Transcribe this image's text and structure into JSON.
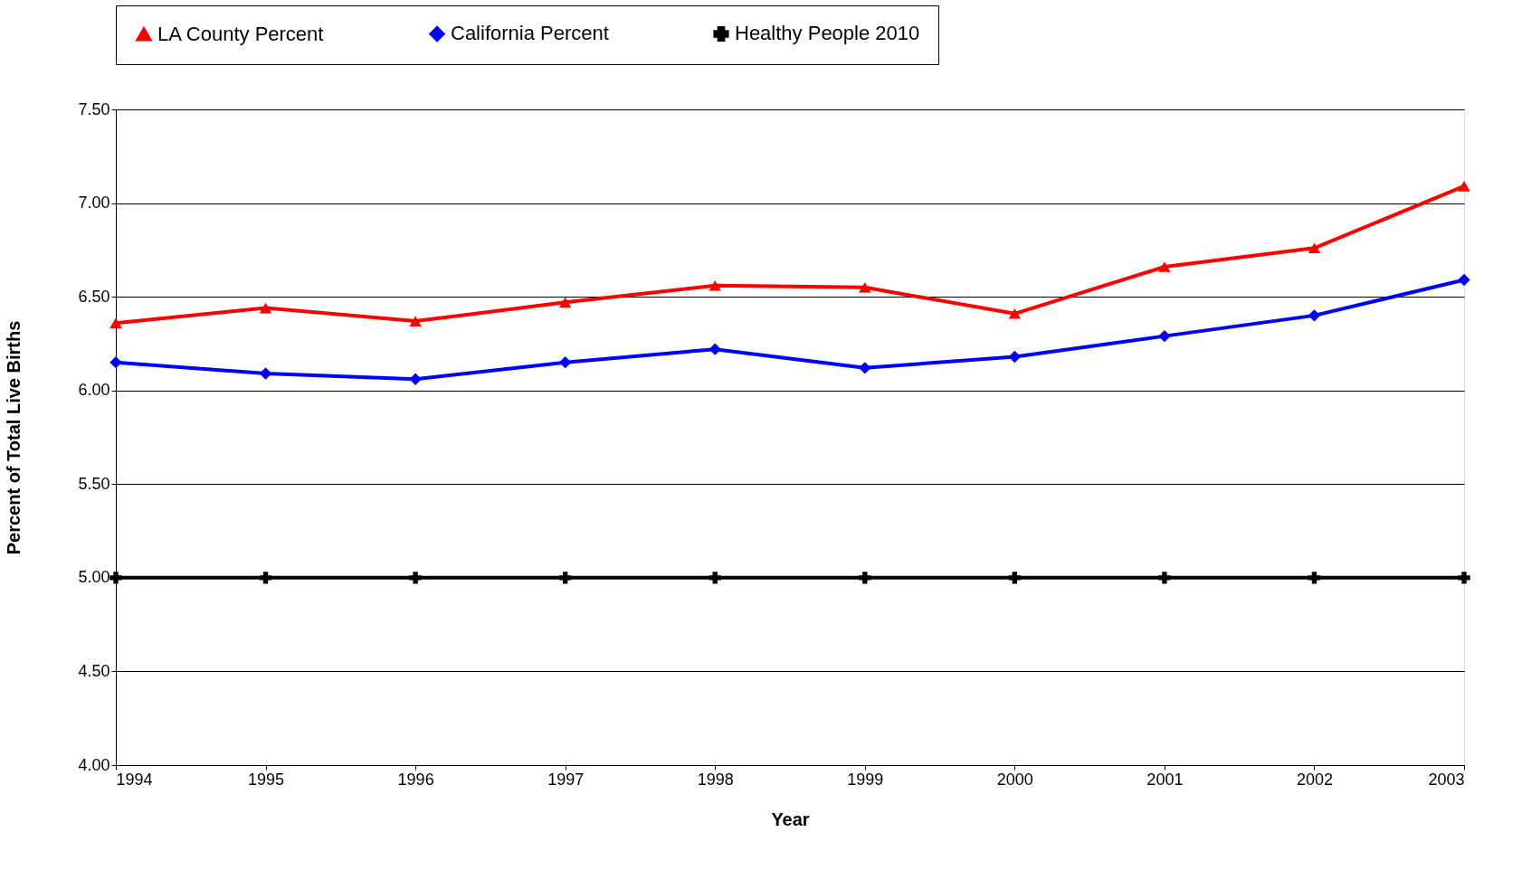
{
  "chart_data": {
    "type": "line",
    "xlabel": "Year",
    "ylabel": "Percent of Total Live Births",
    "x": [
      1994,
      1995,
      1996,
      1997,
      1998,
      1999,
      2000,
      2001,
      2002,
      2003
    ],
    "xlim": [
      1994,
      2003
    ],
    "xticks": [
      1994,
      1995,
      1996,
      1997,
      1998,
      1999,
      2000,
      2001,
      2002,
      2003
    ],
    "ylim": [
      4.0,
      7.5
    ],
    "yticks": [
      {
        "value": 4.0,
        "label": "4.00"
      },
      {
        "value": 4.5,
        "label": "4.50"
      },
      {
        "value": 5.0,
        "label": "5.00"
      },
      {
        "value": 5.5,
        "label": "5.50"
      },
      {
        "value": 6.0,
        "label": "6.00"
      },
      {
        "value": 6.5,
        "label": "6.50"
      },
      {
        "value": 7.0,
        "label": "7.00"
      },
      {
        "value": 7.5,
        "label": "7.50"
      }
    ],
    "grid": "y",
    "legend": "top",
    "line_style": "solid",
    "series": [
      {
        "name": "LA County Percent",
        "color": "#ff0000",
        "marker": "triangle",
        "values": [
          6.36,
          6.44,
          6.37,
          6.47,
          6.56,
          6.55,
          6.41,
          6.66,
          6.76,
          7.09
        ]
      },
      {
        "name": "California Percent",
        "color": "#0000ff",
        "marker": "diamond",
        "values": [
          6.15,
          6.09,
          6.06,
          6.15,
          6.22,
          6.12,
          6.18,
          6.29,
          6.4,
          6.59
        ]
      },
      {
        "name": "Healthy People 2010",
        "color": "#000000",
        "marker": "cross",
        "values": [
          5.0,
          5.0,
          5.0,
          5.0,
          5.0,
          5.0,
          5.0,
          5.0,
          5.0,
          5.0
        ]
      }
    ]
  }
}
